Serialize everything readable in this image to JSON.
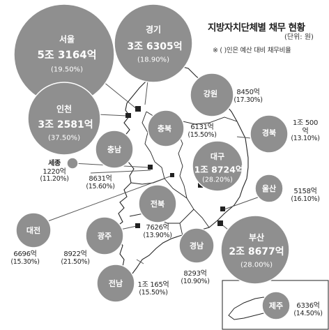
{
  "header": {
    "title": "지방자치단체별 채무 현황",
    "unit": "(단위: 원)",
    "note": "※ (    )인은 예산 대비 채무비율"
  },
  "colors": {
    "bubble": "#8f8f8f",
    "land": "#ffffff",
    "outline": "#222222",
    "leader": "#555555"
  },
  "regions": [
    {
      "name": "서울",
      "amount": "5조 3164억",
      "ratio": "(19.50%)"
    },
    {
      "name": "경기",
      "amount": "3조 6305억",
      "ratio": "(18.90%)"
    },
    {
      "name": "인천",
      "amount": "3조 2581억",
      "ratio": "(37.50%)"
    },
    {
      "name": "강원",
      "amount": "8450억",
      "ratio": "(17.30%)"
    },
    {
      "name": "충북",
      "amount": "6131억",
      "ratio": "(15.50%)"
    },
    {
      "name": "경북",
      "amount": "1조 500억",
      "ratio": "(13.10%)"
    },
    {
      "name": "충남",
      "amount": "8631억",
      "ratio": "(15.60%)"
    },
    {
      "name": "세종",
      "amount": "1220억",
      "ratio": "(11.20%)"
    },
    {
      "name": "대구",
      "amount": "1조 8724억",
      "ratio": "(28.20%)"
    },
    {
      "name": "울산",
      "amount": "5158억",
      "ratio": "(16.10%)"
    },
    {
      "name": "전북",
      "amount": "7626억",
      "ratio": "(13.90%)"
    },
    {
      "name": "대전",
      "amount": "6696억",
      "ratio": "(15.30%)"
    },
    {
      "name": "광주",
      "amount": "8922억",
      "ratio": "(21.50%)"
    },
    {
      "name": "부산",
      "amount": "2조 8677억",
      "ratio": "(28.00%)"
    },
    {
      "name": "경남",
      "amount": "8293억",
      "ratio": "(10.90%)"
    },
    {
      "name": "전남",
      "amount": "1조 165억",
      "ratio": "(15.50%)"
    },
    {
      "name": "제주",
      "amount": "6336억",
      "ratio": "(14.50%)"
    }
  ]
}
